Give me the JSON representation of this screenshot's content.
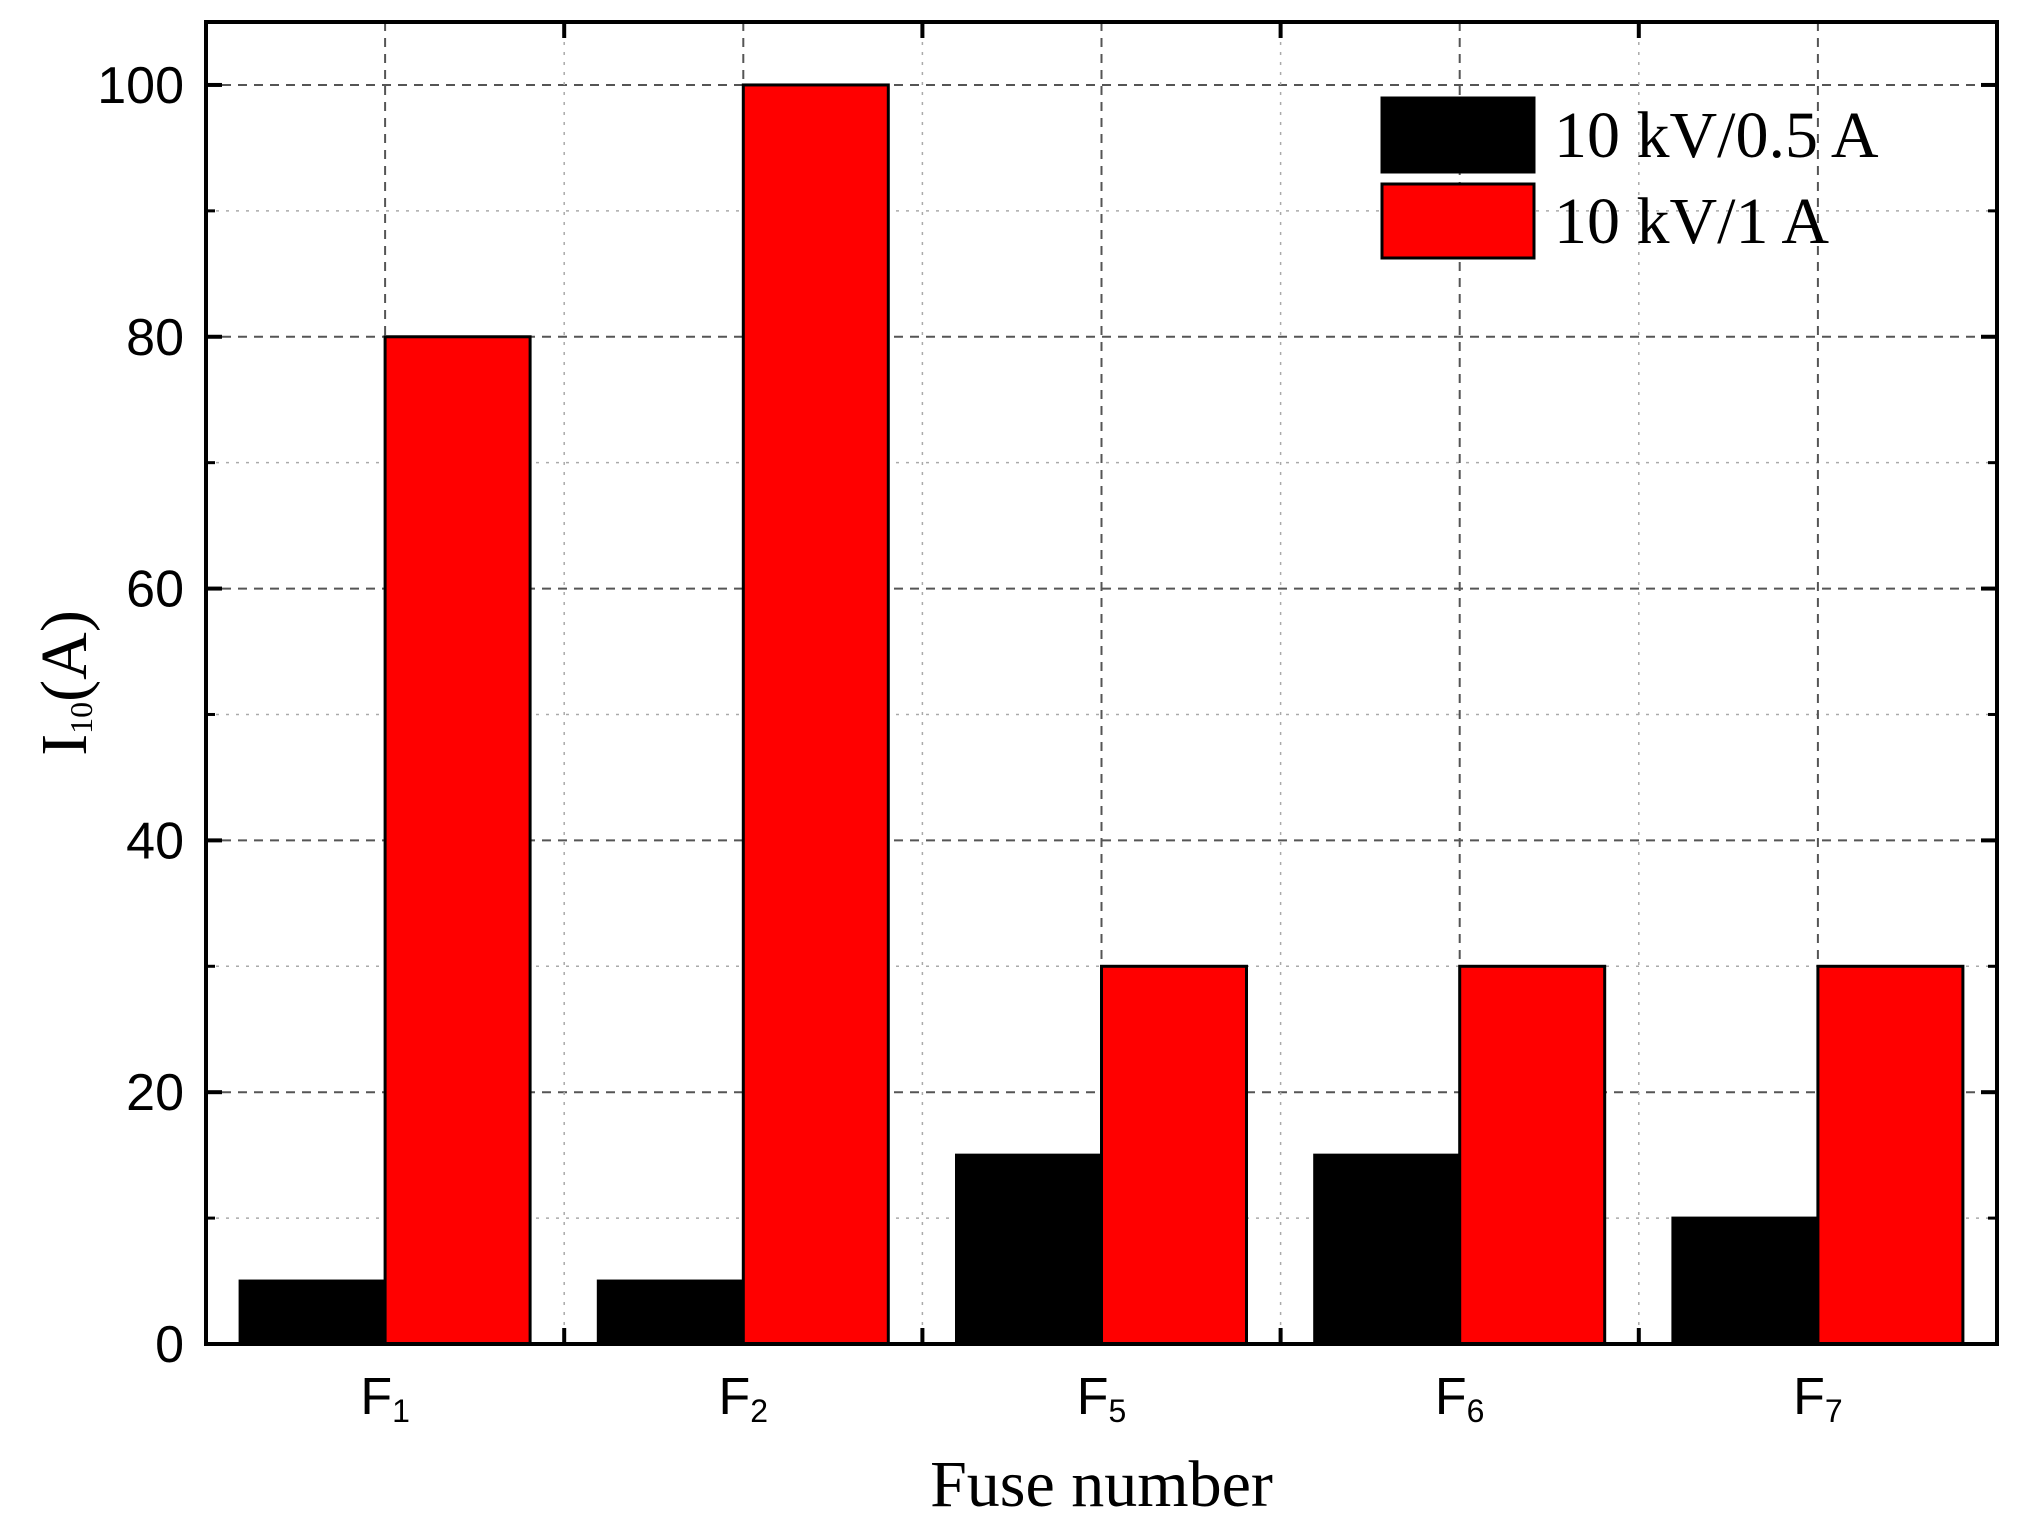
{
  "chart_data": {
    "type": "bar",
    "categories": [
      {
        "main": "F",
        "sub": "1"
      },
      {
        "main": "F",
        "sub": "2"
      },
      {
        "main": "F",
        "sub": "5"
      },
      {
        "main": "F",
        "sub": "6"
      },
      {
        "main": "F",
        "sub": "7"
      }
    ],
    "series": [
      {
        "name": "10 kV/0.5 A",
        "color": "#000000",
        "values": [
          5,
          5,
          15,
          15,
          10
        ]
      },
      {
        "name": "10 kV/1 A",
        "color": "#ff0000",
        "values": [
          80,
          100,
          30,
          30,
          30
        ]
      }
    ],
    "xlabel": "Fuse number",
    "ylabel": {
      "main": "I",
      "sub": "10",
      "unit": "(A)"
    },
    "ylim": [
      0,
      105
    ],
    "yticks": [
      0,
      20,
      40,
      60,
      80,
      100
    ],
    "grid": true,
    "legend_position": "top-right"
  }
}
